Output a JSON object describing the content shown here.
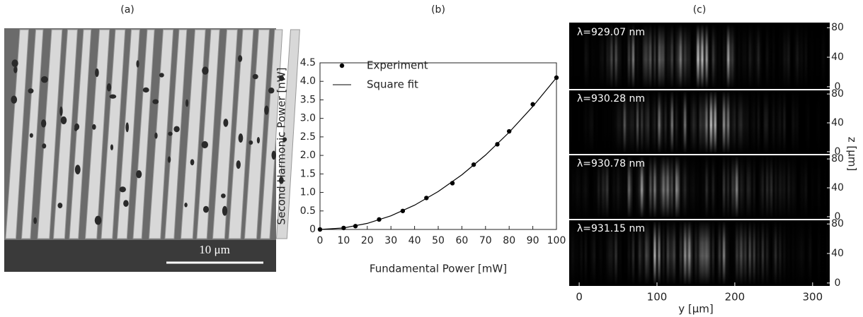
{
  "panel_a": {
    "label": "(a)",
    "scale_bar": "10 μm"
  },
  "chart_data": {
    "type": "scatter",
    "title": "(b)",
    "x_label": "Fundamental Power [mW]",
    "y_label": "Second Harmonic Power [nW]",
    "xlim": [
      0,
      100
    ],
    "xticks": [
      0,
      10,
      20,
      30,
      40,
      50,
      60,
      70,
      80,
      90,
      100
    ],
    "ylim": [
      0,
      4.5
    ],
    "yticks": [
      0,
      0.5,
      {
        "value": 1,
        "label": "1.0"
      },
      1.5,
      {
        "value": 2,
        "label": "2.0"
      },
      2.5,
      {
        "value": 3,
        "label": "3.0"
      },
      3.5,
      {
        "value": 4,
        "label": "4.0"
      },
      4.5
    ],
    "legend": "upper left",
    "series": [
      {
        "name": "Experiment",
        "color": "#000000",
        "style": "markers",
        "x": [
          0,
          10,
          15,
          25,
          35,
          45,
          56,
          65,
          75,
          80,
          90,
          100
        ],
        "values": [
          0,
          0.04,
          0.09,
          0.27,
          0.5,
          0.85,
          1.25,
          1.75,
          2.3,
          2.65,
          3.38,
          4.1
        ]
      },
      {
        "name": "Square fit",
        "color": "#000000",
        "style": "line",
        "x": [
          0,
          10,
          20,
          30,
          40,
          50,
          60,
          70,
          80,
          90,
          100
        ],
        "values": [
          0,
          0.041,
          0.164,
          0.369,
          0.656,
          1.025,
          1.476,
          2.009,
          2.624,
          3.321,
          4.1
        ]
      }
    ]
  },
  "panel_c": {
    "label": "(c)",
    "x_label": "y [μm]",
    "z_label": "z [μm]",
    "xlim": [
      -11,
      322
    ],
    "xticks": [
      0,
      100,
      200,
      300
    ],
    "zlim": [
      -3,
      85
    ],
    "zticks": [
      0,
      40,
      80
    ],
    "images": [
      "λ=929.07 nm",
      "λ=930.28 nm",
      "λ=930.78 nm",
      "λ=931.15 nm"
    ]
  }
}
